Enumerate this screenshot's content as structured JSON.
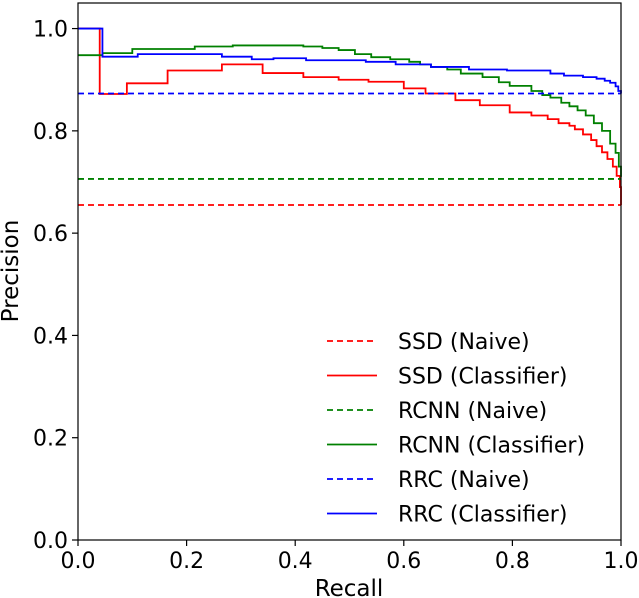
{
  "chart_data": {
    "type": "line",
    "title": "",
    "xlabel": "Recall",
    "ylabel": "Precision",
    "xlim": [
      0.0,
      1.0
    ],
    "ylim": [
      0.0,
      1.05
    ],
    "xticks": [
      "0.0",
      "0.2",
      "0.4",
      "0.6",
      "0.8",
      "1.0"
    ],
    "yticks": [
      "0.0",
      "0.2",
      "0.4",
      "0.6",
      "0.8",
      "1.0"
    ],
    "legend_position": "bottom-right",
    "grid": false,
    "series": [
      {
        "name": "SSD (Naive)",
        "color": "#ff0000",
        "style": "dashed",
        "x": [
          0.0,
          1.0
        ],
        "y": [
          0.655,
          0.655
        ]
      },
      {
        "name": "SSD (Classifier)",
        "color": "#ff0000",
        "style": "solid",
        "step": true,
        "x": [
          0.0,
          0.035,
          0.04,
          0.09,
          0.165,
          0.265,
          0.34,
          0.415,
          0.48,
          0.535,
          0.6,
          0.64,
          0.695,
          0.74,
          0.795,
          0.835,
          0.865,
          0.885,
          0.905,
          0.915,
          0.93,
          0.945,
          0.955,
          0.965,
          0.975,
          0.985,
          0.992,
          0.998,
          1.0
        ],
        "y": [
          1.0,
          1.0,
          0.872,
          0.893,
          0.918,
          0.93,
          0.913,
          0.905,
          0.9,
          0.896,
          0.883,
          0.873,
          0.86,
          0.85,
          0.836,
          0.83,
          0.823,
          0.815,
          0.81,
          0.803,
          0.793,
          0.782,
          0.77,
          0.758,
          0.745,
          0.73,
          0.712,
          0.69,
          0.655
        ]
      },
      {
        "name": "RCNN (Naive)",
        "color": "#008000",
        "style": "dashed",
        "x": [
          0.0,
          1.0
        ],
        "y": [
          0.706,
          0.706
        ]
      },
      {
        "name": "RCNN (Classifier)",
        "color": "#008000",
        "style": "solid",
        "step": true,
        "x": [
          0.0,
          0.045,
          0.1,
          0.215,
          0.285,
          0.415,
          0.45,
          0.48,
          0.51,
          0.54,
          0.575,
          0.61,
          0.63,
          0.65,
          0.68,
          0.705,
          0.745,
          0.775,
          0.795,
          0.835,
          0.855,
          0.87,
          0.89,
          0.905,
          0.92,
          0.935,
          0.95,
          0.965,
          0.98,
          0.99,
          0.996,
          1.0
        ],
        "y": [
          0.948,
          0.952,
          0.96,
          0.965,
          0.967,
          0.965,
          0.962,
          0.958,
          0.95,
          0.944,
          0.94,
          0.935,
          0.93,
          0.925,
          0.92,
          0.912,
          0.905,
          0.895,
          0.888,
          0.878,
          0.87,
          0.865,
          0.855,
          0.848,
          0.84,
          0.83,
          0.815,
          0.8,
          0.775,
          0.757,
          0.73,
          0.71
        ]
      },
      {
        "name": "RRC (Naive)",
        "color": "#0000ff",
        "style": "dashed",
        "x": [
          0.0,
          1.0
        ],
        "y": [
          0.873,
          0.873
        ]
      },
      {
        "name": "RRC (Classifier)",
        "color": "#0000ff",
        "style": "solid",
        "step": true,
        "x": [
          0.0,
          0.035,
          0.045,
          0.11,
          0.265,
          0.32,
          0.36,
          0.42,
          0.53,
          0.585,
          0.65,
          0.72,
          0.79,
          0.87,
          0.895,
          0.93,
          0.955,
          0.97,
          0.98,
          0.99,
          0.995,
          1.0
        ],
        "y": [
          1.0,
          1.0,
          0.945,
          0.95,
          0.945,
          0.94,
          0.942,
          0.938,
          0.935,
          0.93,
          0.925,
          0.92,
          0.918,
          0.912,
          0.908,
          0.905,
          0.902,
          0.898,
          0.894,
          0.887,
          0.878,
          0.873
        ]
      }
    ]
  }
}
